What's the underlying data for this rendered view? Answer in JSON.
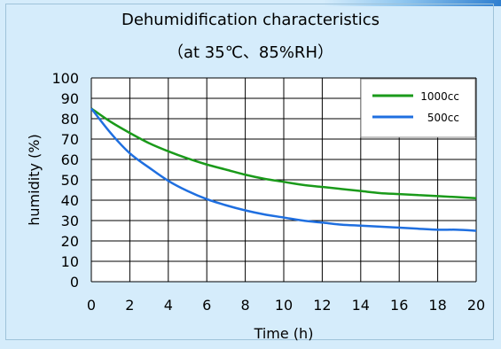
{
  "chart_data": {
    "type": "line",
    "title": "Dehumidification characteristics",
    "subtitle": "（at  35℃、85%RH）",
    "xlabel": "Time (h)",
    "ylabel": "humidity (%)",
    "xlim": [
      0,
      20
    ],
    "ylim": [
      0,
      100
    ],
    "x_ticks": [
      0,
      2,
      4,
      6,
      8,
      10,
      12,
      14,
      16,
      18,
      20
    ],
    "y_ticks": [
      0,
      10,
      20,
      30,
      40,
      50,
      60,
      70,
      80,
      90,
      100
    ],
    "grid": true,
    "legend_position": "top-right",
    "series": [
      {
        "name": "1000cc",
        "color": "#1a9a1a",
        "x": [
          0,
          1,
          2,
          3,
          4,
          5,
          6,
          7,
          8,
          9,
          10,
          11,
          12,
          13,
          14,
          15,
          16,
          17,
          18,
          19,
          20
        ],
        "y": [
          85,
          78.5,
          73,
          68,
          64,
          60.5,
          57.5,
          55,
          52.5,
          50.5,
          49,
          47.5,
          46.5,
          45.5,
          44.5,
          43.5,
          43,
          42.5,
          42,
          41.5,
          41
        ]
      },
      {
        "name": "500cc",
        "color": "#1f6fe0",
        "x": [
          0,
          1,
          2,
          3,
          4,
          5,
          6,
          7,
          8,
          9,
          10,
          11,
          12,
          13,
          14,
          15,
          16,
          17,
          18,
          19,
          20
        ],
        "y": [
          85,
          73,
          63,
          56,
          49.5,
          44.5,
          40.5,
          37.5,
          35,
          33,
          31.5,
          30,
          29,
          28,
          27.5,
          27,
          26.5,
          26,
          25.5,
          25.5,
          25
        ]
      }
    ]
  },
  "colors": {
    "background": "#d5ecfb",
    "plot_background": "#ffffff",
    "grid": "#000000"
  }
}
